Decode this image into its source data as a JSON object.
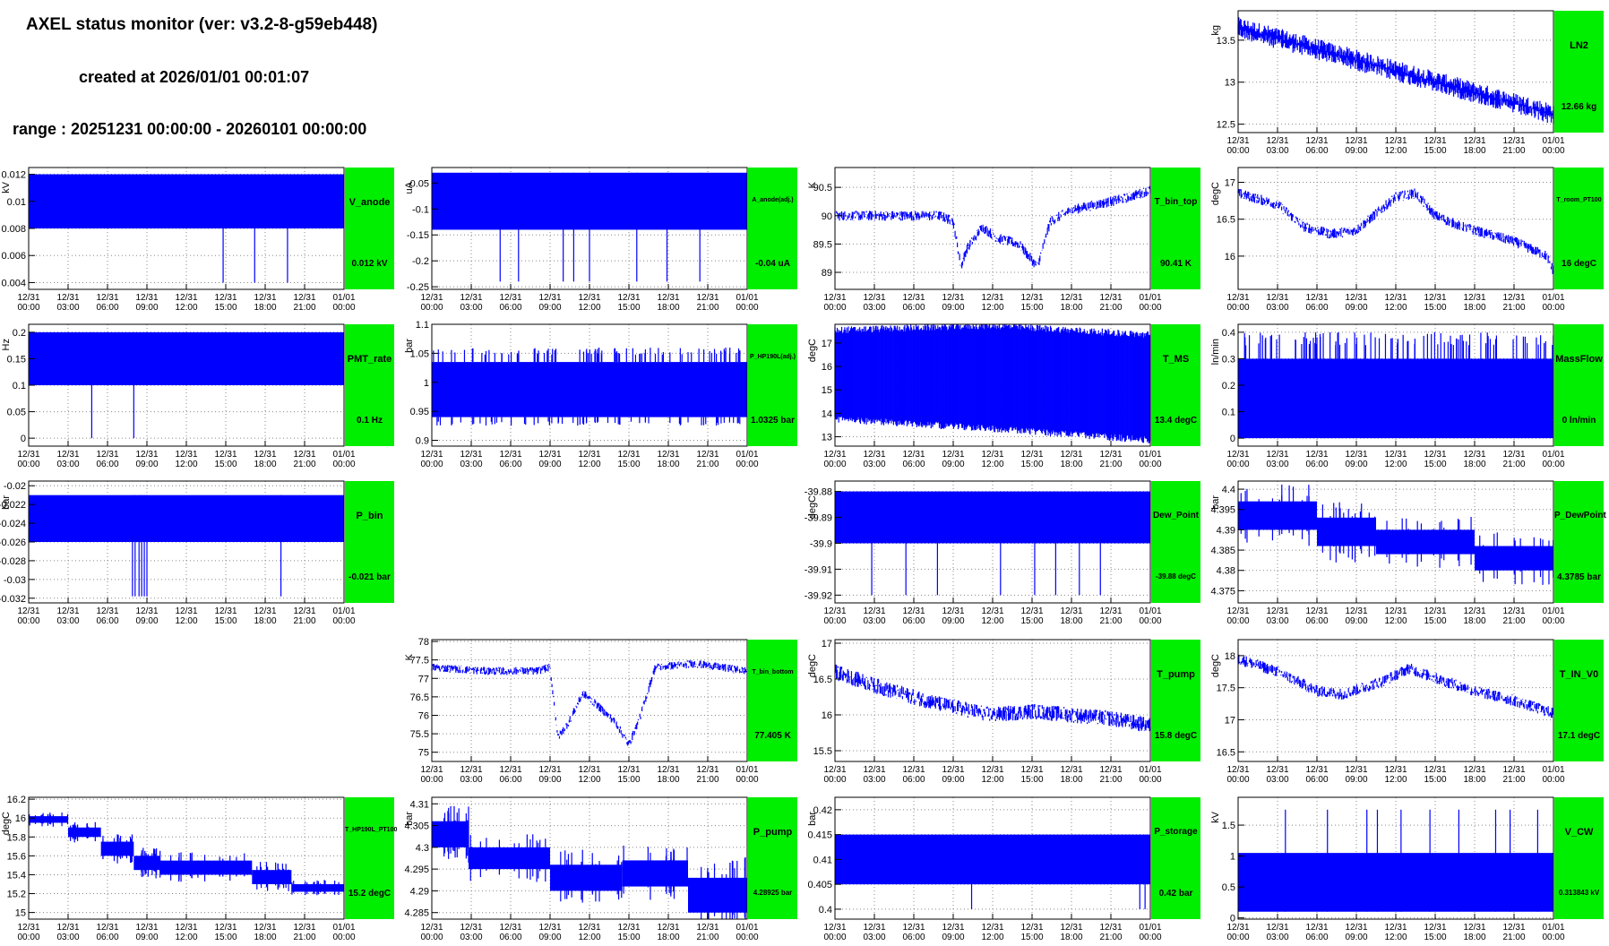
{
  "header": {
    "title": "AXEL status monitor (ver: v3.2-8-g59eb448)",
    "created": "created at 2026/01/01 00:01:07",
    "range": "range : 20251231 00:00:00 - 20260101 00:00:00"
  },
  "colors": {
    "trace": "#0000ff",
    "status_box": "#00ee00"
  },
  "x_ticks": [
    "12/31\n00:00",
    "12/31\n03:00",
    "12/31\n06:00",
    "12/31\n09:00",
    "12/31\n12:00",
    "12/31\n15:00",
    "12/31\n18:00",
    "12/31\n21:00",
    "01/01\n00:00"
  ],
  "chart_data": [
    {
      "id": "LN2",
      "type": "line",
      "name": "LN2",
      "value_text": "12.66 kg",
      "ylabel": "kg",
      "ylim": [
        12.4,
        13.85
      ],
      "yticks": [
        "12.5",
        "13",
        "13.5"
      ],
      "ytick_values": [
        12.5,
        13,
        13.5
      ],
      "x_hours": [
        0,
        24
      ],
      "series_shape": "linear-decline",
      "start": 13.65,
      "end": 12.62,
      "band": 0.18
    },
    {
      "id": "V_anode",
      "type": "line",
      "name": "V_anode",
      "value_text": "0.012 kV",
      "ylabel": "kV",
      "ylim": [
        0.0035,
        0.0125
      ],
      "yticks": [
        "0.004",
        "0.006",
        "0.008",
        "0.01",
        "0.012"
      ],
      "ytick_values": [
        0.004,
        0.006,
        0.008,
        0.01,
        0.012
      ],
      "band_low": 0.008,
      "band_high": 0.012,
      "spikes_hours": [
        14.8,
        17.2,
        19.7
      ],
      "spike_to": 0.004
    },
    {
      "id": "A_anode",
      "type": "line",
      "name": "A_anode(adj.)",
      "value_text": "-0.04 uA",
      "ylabel": "uA",
      "ylim": [
        -0.255,
        -0.02
      ],
      "yticks": [
        "-0.25",
        "-0.2",
        "-0.15",
        "-0.1",
        "-0.05"
      ],
      "ytick_values": [
        -0.25,
        -0.2,
        -0.15,
        -0.1,
        -0.05
      ],
      "band_low": -0.14,
      "band_high": -0.03,
      "spikes_hours": [
        5.2,
        6.6,
        10,
        10.8,
        12,
        15.6,
        17.9,
        20.4
      ],
      "spike_to": -0.24
    },
    {
      "id": "T_bin_top",
      "type": "line",
      "name": "T_bin_top",
      "value_text": "90.41 K",
      "ylabel": "K",
      "ylim": [
        88.7,
        90.85
      ],
      "yticks": [
        "89",
        "89.5",
        "90",
        "90.5"
      ],
      "ytick_values": [
        89,
        89.5,
        90,
        90.5
      ],
      "profile": [
        [
          0,
          90
        ],
        [
          8,
          90
        ],
        [
          9,
          89.9
        ],
        [
          9.6,
          89.1
        ],
        [
          10,
          89.4
        ],
        [
          11.2,
          89.8
        ],
        [
          12.4,
          89.6
        ],
        [
          14,
          89.5
        ],
        [
          15.4,
          89.1
        ],
        [
          16.4,
          89.9
        ],
        [
          18,
          90.1
        ],
        [
          20,
          90.2
        ],
        [
          22,
          90.3
        ],
        [
          24,
          90.45
        ]
      ],
      "noise": 0.18
    },
    {
      "id": "T_room_PT100",
      "type": "line",
      "name": "T_room_PT100",
      "value_text": "16 degC",
      "ylabel": "degC",
      "ylim": [
        15.55,
        17.2
      ],
      "yticks": [
        "16",
        "16.5",
        "17"
      ],
      "ytick_values": [
        16,
        16.5,
        17
      ],
      "profile": [
        [
          0,
          16.85
        ],
        [
          3,
          16.7
        ],
        [
          5,
          16.4
        ],
        [
          7,
          16.3
        ],
        [
          9,
          16.35
        ],
        [
          10,
          16.5
        ],
        [
          12,
          16.8
        ],
        [
          13.5,
          16.85
        ],
        [
          15,
          16.55
        ],
        [
          17,
          16.4
        ],
        [
          19,
          16.3
        ],
        [
          21,
          16.2
        ],
        [
          23.5,
          16.0
        ],
        [
          24,
          15.8
        ]
      ],
      "noise": 0.14
    },
    {
      "id": "PMT_rate",
      "type": "line",
      "name": "PMT_rate",
      "value_text": "0.1 Hz",
      "ylabel": "Hz",
      "ylim": [
        -0.015,
        0.215
      ],
      "yticks": [
        "0",
        "0.05",
        "0.1",
        "0.15",
        "0.2"
      ],
      "ytick_values": [
        0,
        0.05,
        0.1,
        0.15,
        0.2
      ],
      "band_low": 0.1,
      "band_high": 0.2,
      "spikes_hours": [
        4.8,
        8.0
      ],
      "spike_to": 0
    },
    {
      "id": "P_HP190L",
      "type": "line",
      "name": "P_HP190L(adj.)",
      "value_text": "1.0325 bar",
      "ylabel": "bar",
      "ylim": [
        0.89,
        1.1
      ],
      "yticks": [
        "0.9",
        "0.95",
        "1",
        "1.05",
        "1.1"
      ],
      "ytick_values": [
        0.9,
        0.95,
        1,
        1.05,
        1.1
      ],
      "band_low": 0.94,
      "band_high": 1.035,
      "noise_spikes_low": 0.925,
      "noise_spikes_high": 1.06
    },
    {
      "id": "T_MS",
      "type": "line",
      "name": "T_MS",
      "value_text": "13.4 degC",
      "ylabel": "degC",
      "ylim": [
        12.6,
        17.8
      ],
      "yticks": [
        "13",
        "14",
        "15",
        "16",
        "17"
      ],
      "ytick_values": [
        13,
        14,
        15,
        16,
        17
      ],
      "profile_low": [
        [
          0,
          13.9
        ],
        [
          12,
          13.5
        ],
        [
          24,
          13.0
        ]
      ],
      "profile_high": [
        [
          0,
          17.4
        ],
        [
          12,
          17.6
        ],
        [
          24,
          17.2
        ]
      ]
    },
    {
      "id": "MassFlow",
      "type": "line",
      "name": "MassFlow",
      "value_text": "0 ln/min",
      "ylabel": "ln/min",
      "ylim": [
        -0.03,
        0.43
      ],
      "yticks": [
        "0",
        "0.1",
        "0.2",
        "0.3",
        "0.4"
      ],
      "ytick_values": [
        0,
        0.1,
        0.2,
        0.3,
        0.4
      ],
      "band_low": 0,
      "band_high": 0.3,
      "noise_spikes_high": 0.4
    },
    {
      "id": "P_bin",
      "type": "line",
      "name": "P_bin",
      "value_text": "-0.021 bar",
      "ylabel": "bar",
      "ylim": [
        -0.0325,
        -0.0195
      ],
      "yticks": [
        "-0.032",
        "-0.03",
        "-0.028",
        "-0.026",
        "-0.024",
        "-0.022",
        "-0.02"
      ],
      "ytick_values": [
        -0.032,
        -0.03,
        -0.028,
        -0.026,
        -0.024,
        -0.022,
        -0.02
      ],
      "band_low": -0.026,
      "band_high": -0.021,
      "spikes_hours": [
        7.9,
        8.1,
        8.4,
        8.6,
        8.8,
        9.0,
        19.2
      ],
      "spike_to": -0.0318
    },
    {
      "id": "Dew_Point",
      "type": "line",
      "name": "Dew_Point",
      "value_text": "-39.88 degC",
      "ylabel": "degC",
      "ylim": [
        -39.923,
        -39.876
      ],
      "yticks": [
        "-39.92",
        "-39.91",
        "-39.9",
        "-39.89",
        "-39.88"
      ],
      "ytick_values": [
        -39.92,
        -39.91,
        -39.9,
        -39.89,
        -39.88
      ],
      "band_low": -39.9,
      "band_high": -39.88,
      "spikes_hours": [
        2.8,
        5.4,
        7.8,
        12.6,
        15.2,
        16.8,
        18.6,
        20.2
      ],
      "spike_to": -39.92
    },
    {
      "id": "P_DewPoint",
      "type": "line",
      "name": "P_DewPoint",
      "value_text": "4.3785 bar",
      "ylabel": "bar",
      "ylim": [
        4.372,
        4.402
      ],
      "yticks": [
        "4.375",
        "4.38",
        "4.385",
        "4.39",
        "4.395",
        "4.4"
      ],
      "ytick_values": [
        4.375,
        4.38,
        4.385,
        4.39,
        4.395,
        4.4
      ],
      "steps": [
        [
          0,
          6,
          4.39,
          4.397
        ],
        [
          6,
          10.5,
          4.386,
          4.393
        ],
        [
          10.5,
          18,
          4.384,
          4.39
        ],
        [
          18,
          24,
          4.38,
          4.386
        ]
      ]
    },
    {
      "id": "T_bin_bottom",
      "type": "line",
      "name": "T_bin_bottom",
      "value_text": "77.405 K",
      "ylabel": "K",
      "ylim": [
        74.75,
        78.05
      ],
      "yticks": [
        "75",
        "75.5",
        "76",
        "76.5",
        "77",
        "77.5",
        "78"
      ],
      "ytick_values": [
        75,
        75.5,
        76,
        76.5,
        77,
        77.5,
        78
      ],
      "profile": [
        [
          0,
          77.3
        ],
        [
          4,
          77.2
        ],
        [
          8,
          77.2
        ],
        [
          9,
          77.3
        ],
        [
          9.6,
          75.4
        ],
        [
          10.4,
          75.8
        ],
        [
          11.5,
          76.6
        ],
        [
          12.5,
          76.3
        ],
        [
          14,
          75.8
        ],
        [
          15,
          75.2
        ],
        [
          15.8,
          75.9
        ],
        [
          17,
          77.3
        ],
        [
          20,
          77.4
        ],
        [
          24,
          77.2
        ]
      ],
      "noise": 0.22
    },
    {
      "id": "T_pump",
      "type": "line",
      "name": "T_pump",
      "value_text": "15.8 degC",
      "ylabel": "degC",
      "ylim": [
        15.35,
        17.05
      ],
      "yticks": [
        "15.5",
        "16",
        "16.5",
        "17"
      ],
      "ytick_values": [
        15.5,
        16,
        16.5,
        17
      ],
      "profile": [
        [
          0,
          16.6
        ],
        [
          4,
          16.35
        ],
        [
          8,
          16.15
        ],
        [
          12,
          16.0
        ],
        [
          15,
          16.05
        ],
        [
          18,
          16.0
        ],
        [
          21,
          15.95
        ],
        [
          24,
          15.85
        ]
      ],
      "noise": 0.22
    },
    {
      "id": "T_IN_V0",
      "type": "line",
      "name": "T_IN_V0",
      "value_text": "17.1 degC",
      "ylabel": "degC",
      "ylim": [
        16.35,
        18.25
      ],
      "yticks": [
        "16.5",
        "17",
        "17.5",
        "18"
      ],
      "ytick_values": [
        16.5,
        17,
        17.5,
        18
      ],
      "profile": [
        [
          0,
          17.95
        ],
        [
          3,
          17.75
        ],
        [
          6,
          17.45
        ],
        [
          8,
          17.4
        ],
        [
          11,
          17.6
        ],
        [
          13,
          17.8
        ],
        [
          15,
          17.65
        ],
        [
          18,
          17.45
        ],
        [
          21,
          17.3
        ],
        [
          24,
          17.1
        ]
      ],
      "noise": 0.18
    },
    {
      "id": "T_HP190L_PT100",
      "type": "line",
      "name": "T_HP190L_PT100",
      "value_text": "15.2 degC",
      "ylabel": "degC",
      "ylim": [
        14.93,
        16.22
      ],
      "yticks": [
        "15",
        "15.2",
        "15.4",
        "15.6",
        "15.8",
        "16",
        "16.2"
      ],
      "ytick_values": [
        15,
        15.2,
        15.4,
        15.6,
        15.8,
        16,
        16.2
      ],
      "steps": [
        [
          0,
          3,
          15.95,
          16.02
        ],
        [
          3,
          5.5,
          15.8,
          15.9
        ],
        [
          5.5,
          8,
          15.6,
          15.75
        ],
        [
          8,
          10,
          15.45,
          15.6
        ],
        [
          10,
          17,
          15.4,
          15.55
        ],
        [
          17,
          20,
          15.3,
          15.45
        ],
        [
          20,
          24,
          15.22,
          15.3
        ]
      ]
    },
    {
      "id": "P_pump",
      "type": "line",
      "name": "P_pump",
      "value_text": "4.28925 bar",
      "ylabel": "bar",
      "ylim": [
        4.2835,
        4.3115
      ],
      "yticks": [
        "4.285",
        "4.29",
        "4.295",
        "4.3",
        "4.305",
        "4.31"
      ],
      "ytick_values": [
        4.285,
        4.29,
        4.295,
        4.3,
        4.305,
        4.31
      ],
      "steps": [
        [
          0,
          2.8,
          4.3,
          4.306
        ],
        [
          2.8,
          9,
          4.295,
          4.3
        ],
        [
          9,
          14.5,
          4.29,
          4.296
        ],
        [
          14.5,
          19.5,
          4.291,
          4.297
        ],
        [
          19.5,
          24,
          4.285,
          4.293
        ]
      ]
    },
    {
      "id": "P_storage",
      "type": "line",
      "name": "P_storage",
      "value_text": "0.42 bar",
      "ylabel": "bar",
      "ylim": [
        0.398,
        0.4225
      ],
      "yticks": [
        "0.4",
        "0.405",
        "0.41",
        "0.415",
        "0.42"
      ],
      "ytick_values": [
        0.4,
        0.405,
        0.41,
        0.415,
        0.42
      ],
      "band_low": 0.405,
      "band_high": 0.415,
      "spikes_hours": [
        10.4,
        23.2,
        23.6
      ],
      "spike_to": 0.4
    },
    {
      "id": "V_CW",
      "type": "line",
      "name": "V_CW",
      "value_text": "0.313843 kV",
      "ylabel": "kV",
      "ylim": [
        -0.02,
        1.95
      ],
      "yticks": [
        "0",
        "0.5",
        "1",
        "1.5"
      ],
      "ytick_values": [
        0,
        0.5,
        1,
        1.5
      ],
      "band_low": 0.1,
      "band_high": 1.05,
      "spikes_hours": [
        3.6,
        6.8,
        9.8,
        10.6,
        12.4,
        14.6,
        16.8,
        19.6,
        20.7,
        22.8
      ],
      "spike_to": 1.75
    }
  ]
}
